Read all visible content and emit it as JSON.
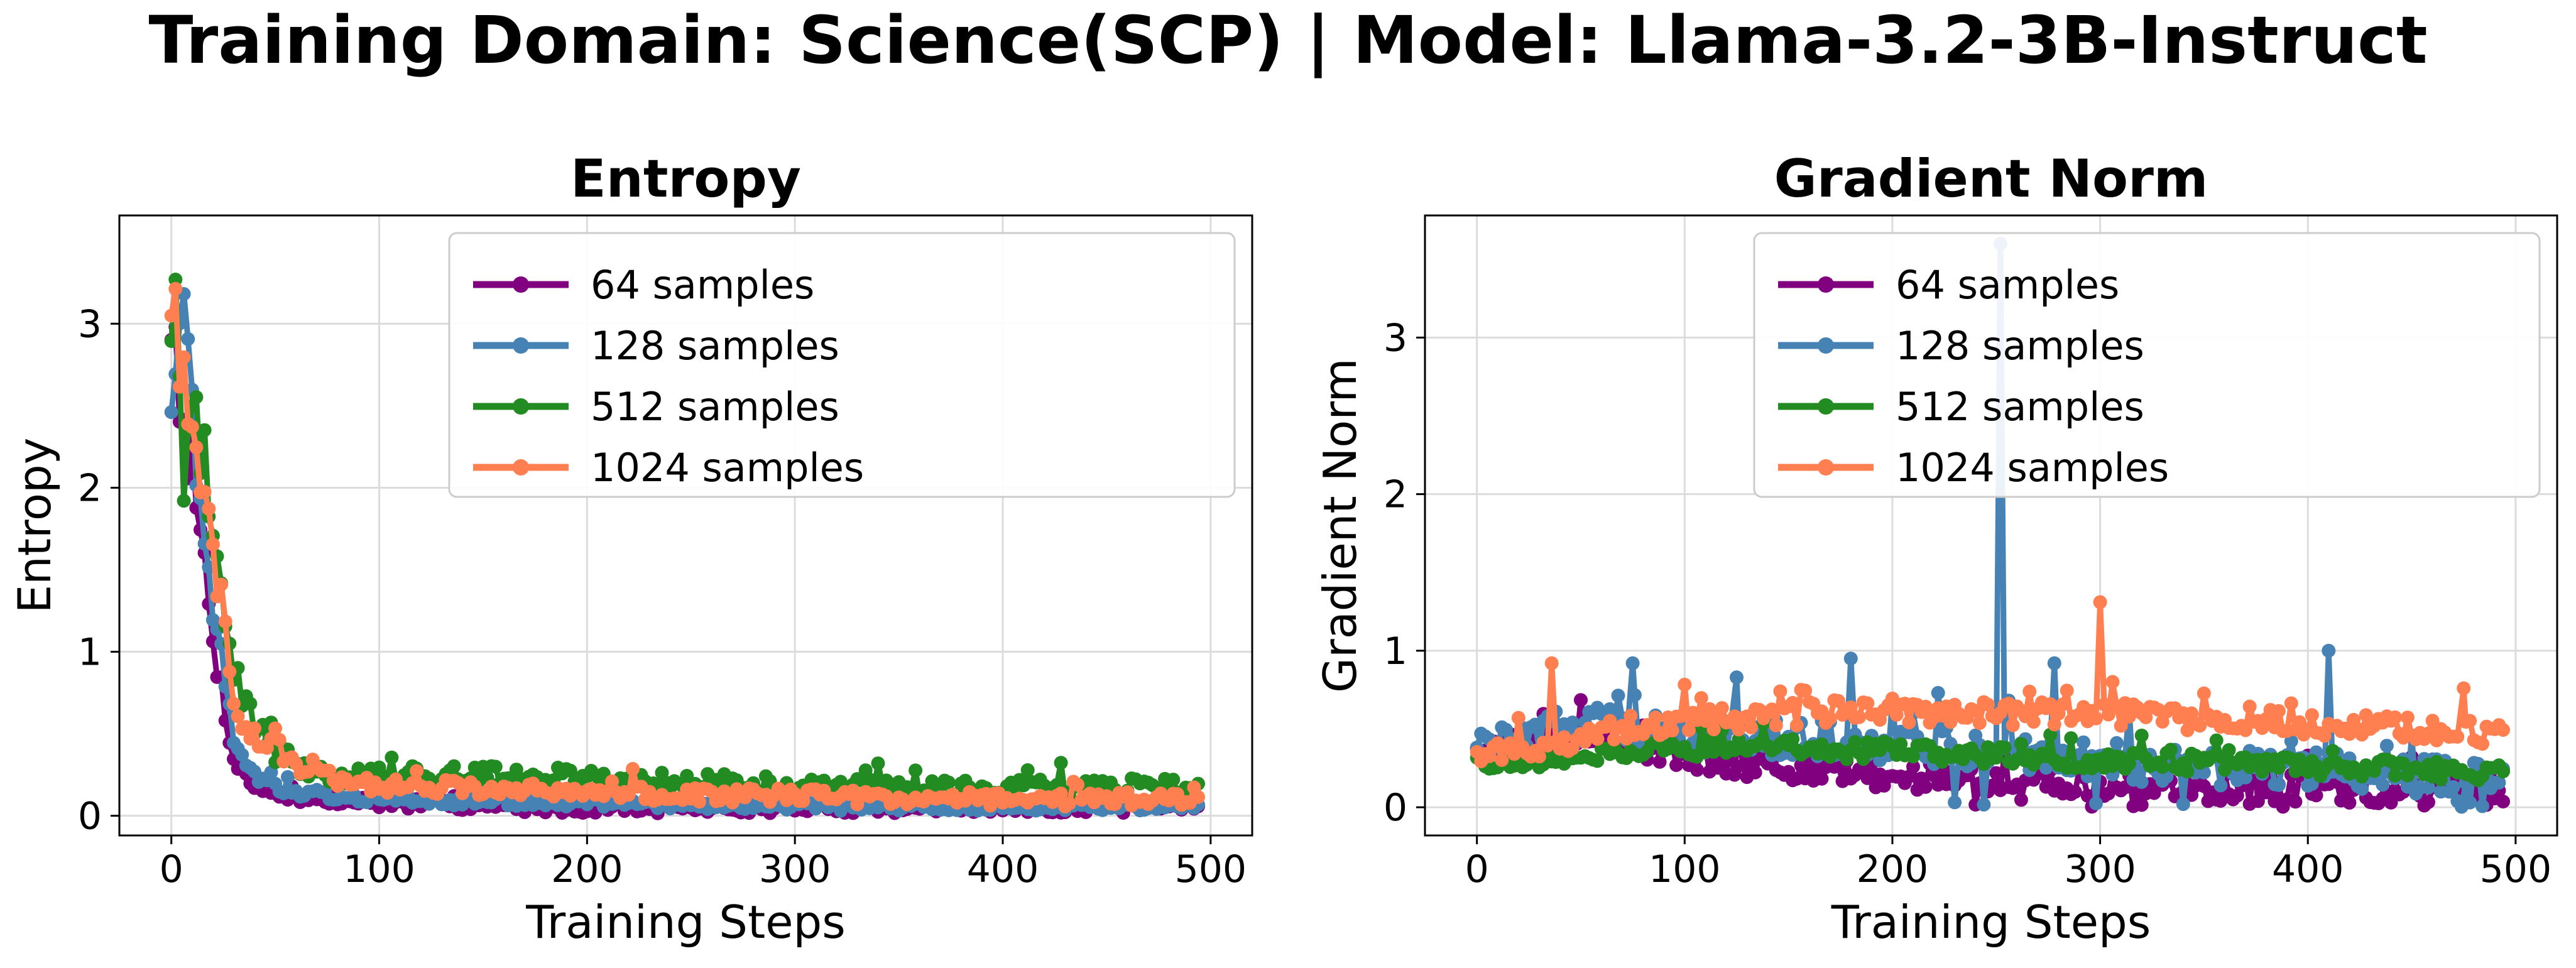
{
  "suptitle": "Training Domain: Science(SCP) | Model: Llama-3.2-3B-Instruct",
  "colors": {
    "64 samples": "#800080",
    "128 samples": "#4682b4",
    "512 samples": "#228b22",
    "1024 samples": "#ff7f50"
  },
  "chart_data": [
    {
      "type": "line",
      "title": "Entropy",
      "xlabel": "Training Steps",
      "ylabel": "Entropy",
      "xlim": [
        -25,
        520
      ],
      "ylim": [
        -0.12,
        3.66
      ],
      "xticks": [
        0,
        100,
        200,
        300,
        400,
        500
      ],
      "yticks": [
        0,
        1,
        2,
        3
      ],
      "grid": true,
      "legend": "top-right",
      "x": [
        0,
        5,
        10,
        15,
        20,
        25,
        30,
        40,
        50,
        60,
        80,
        100,
        150,
        200,
        300,
        400,
        495
      ],
      "series": [
        {
          "name": "64 samples",
          "values": [
            3.1,
            2.6,
            2.1,
            1.6,
            1.1,
            0.7,
            0.35,
            0.18,
            0.14,
            0.11,
            0.09,
            0.08,
            0.06,
            0.05,
            0.05,
            0.05,
            0.05
          ]
        },
        {
          "name": "128 samples",
          "values": [
            2.6,
            3.2,
            2.5,
            1.8,
            1.3,
            0.9,
            0.45,
            0.25,
            0.18,
            0.14,
            0.12,
            0.1,
            0.09,
            0.08,
            0.06,
            0.06,
            0.06
          ]
        },
        {
          "name": "512 samples",
          "values": [
            3.2,
            2.3,
            2.6,
            2.1,
            1.5,
            1.2,
            0.85,
            0.55,
            0.4,
            0.3,
            0.25,
            0.25,
            0.25,
            0.24,
            0.18,
            0.17,
            0.18
          ]
        },
        {
          "name": "1024 samples",
          "values": [
            3.3,
            3.0,
            2.7,
            2.0,
            1.6,
            1.2,
            0.7,
            0.5,
            0.45,
            0.3,
            0.22,
            0.18,
            0.17,
            0.14,
            0.12,
            0.1,
            0.1
          ]
        }
      ]
    },
    {
      "type": "line",
      "title": "Gradient Norm",
      "xlabel": "Training Steps",
      "ylabel": "Gradient Norm",
      "xlim": [
        -25,
        520
      ],
      "ylim": [
        -0.18,
        3.78
      ],
      "xticks": [
        0,
        100,
        200,
        300,
        400,
        500
      ],
      "yticks": [
        0,
        1,
        2,
        3
      ],
      "grid": true,
      "legend": "top-right",
      "x": [
        0,
        20,
        40,
        60,
        80,
        100,
        150,
        200,
        250,
        300,
        350,
        400,
        450,
        495
      ],
      "series": [
        {
          "name": "64 samples",
          "values": [
            0.35,
            0.4,
            0.45,
            0.45,
            0.38,
            0.33,
            0.25,
            0.2,
            0.18,
            0.15,
            0.12,
            0.12,
            0.1,
            0.1
          ]
        },
        {
          "name": "128 samples",
          "values": [
            0.35,
            0.45,
            0.5,
            0.55,
            0.5,
            0.45,
            0.45,
            0.4,
            0.35,
            0.3,
            0.25,
            0.25,
            0.2,
            0.2
          ]
        },
        {
          "name": "512 samples",
          "values": [
            0.3,
            0.3,
            0.32,
            0.35,
            0.37,
            0.38,
            0.38,
            0.35,
            0.33,
            0.3,
            0.28,
            0.26,
            0.24,
            0.22
          ]
        },
        {
          "name": "1024 samples",
          "values": [
            0.33,
            0.38,
            0.42,
            0.48,
            0.52,
            0.55,
            0.6,
            0.62,
            0.6,
            0.6,
            0.56,
            0.54,
            0.5,
            0.48
          ]
        }
      ],
      "spikes": [
        {
          "name": "128 samples",
          "x": 252,
          "y": 3.6
        },
        {
          "name": "128 samples",
          "x": 410,
          "y": 1.0
        },
        {
          "name": "128 samples",
          "x": 278,
          "y": 0.92
        },
        {
          "name": "128 samples",
          "x": 180,
          "y": 0.95
        },
        {
          "name": "128 samples",
          "x": 75,
          "y": 0.92
        },
        {
          "name": "128 samples",
          "x": 125,
          "y": 0.83
        },
        {
          "name": "1024 samples",
          "x": 300,
          "y": 1.31
        },
        {
          "name": "1024 samples",
          "x": 36,
          "y": 0.92
        },
        {
          "name": "1024 samples",
          "x": 475,
          "y": 0.76
        }
      ]
    }
  ]
}
